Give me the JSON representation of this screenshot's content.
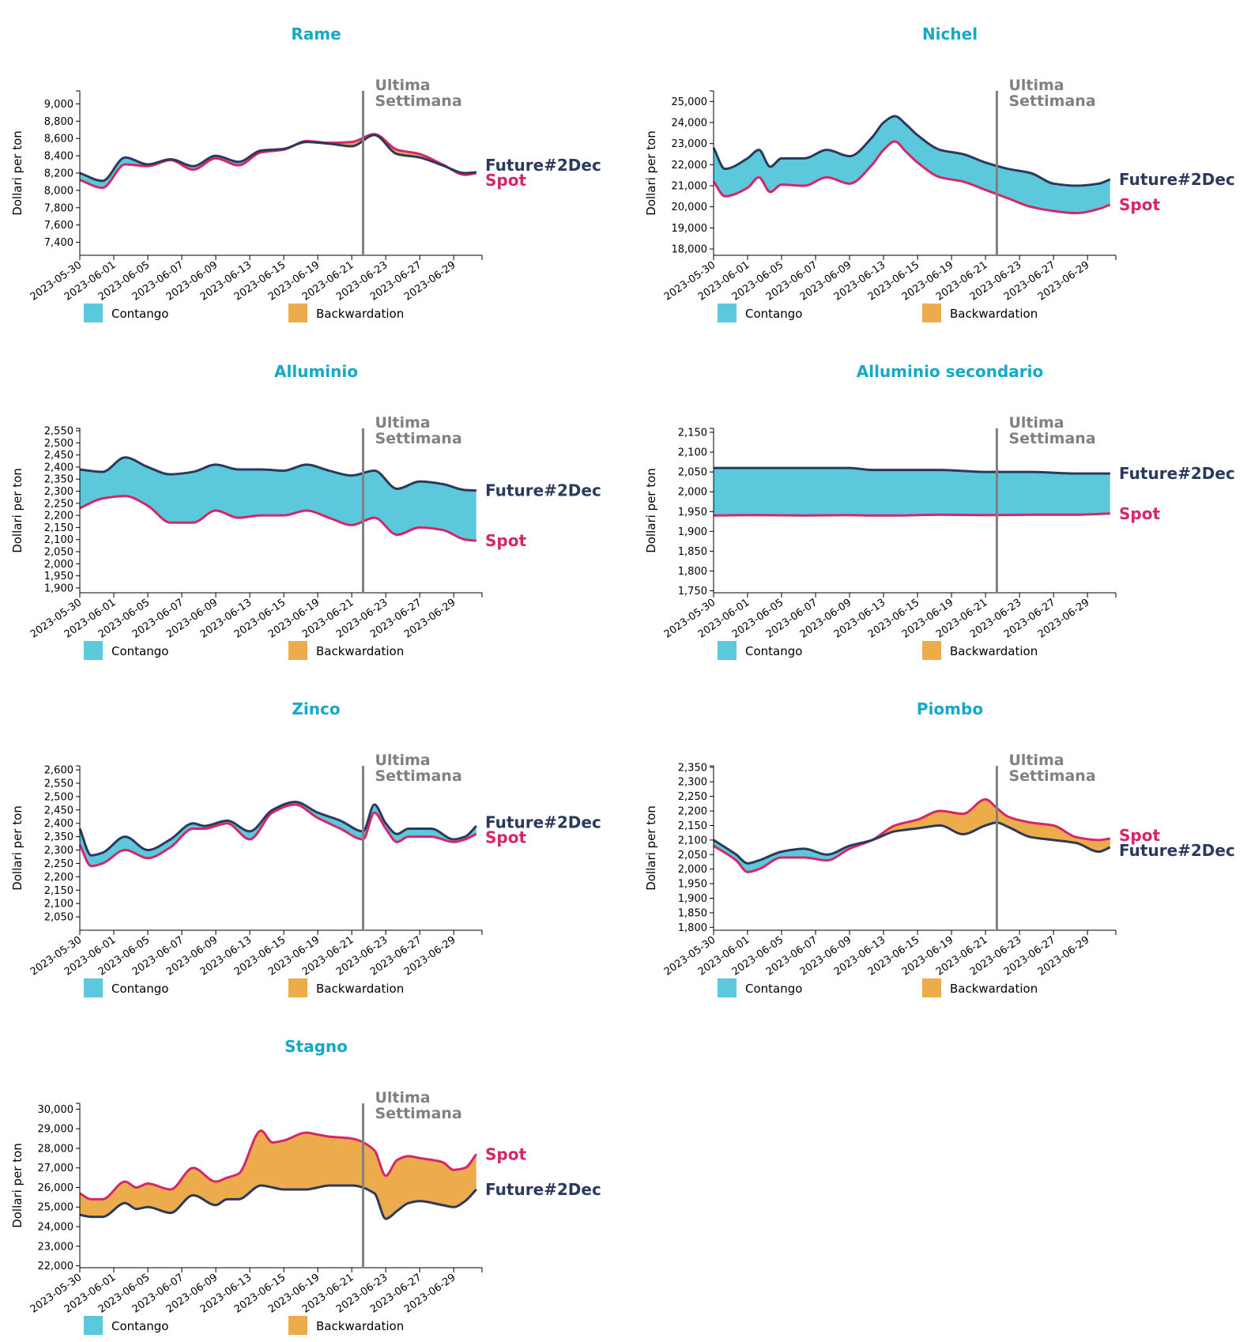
{
  "colors": {
    "title": "#14a9c9",
    "spot": "#d6266b",
    "future": "#2b3a5c",
    "contango": "#5bc8dc",
    "backwardation": "#ecac4c",
    "week_line": "#808080",
    "week_text": "#808080"
  },
  "legend": {
    "contango": "Contango",
    "backwardation": "Backwardation"
  },
  "ylabel": "Dollari per ton",
  "week_label_1": "Ultima",
  "week_label_2": "Settimana",
  "series_names": {
    "spot": "Spot",
    "future": "Future#2Dec"
  },
  "week_marker_day": 25,
  "x_ticks": [
    {
      "day": 0,
      "label": "2023-05-30"
    },
    {
      "day": 3,
      "label": "2023-06-01"
    },
    {
      "day": 6,
      "label": "2023-06-05"
    },
    {
      "day": 9,
      "label": "2023-06-07"
    },
    {
      "day": 12,
      "label": "2023-06-09"
    },
    {
      "day": 15,
      "label": "2023-06-13"
    },
    {
      "day": 18,
      "label": "2023-06-15"
    },
    {
      "day": 21,
      "label": "2023-06-19"
    },
    {
      "day": 24,
      "label": "2023-06-21"
    },
    {
      "day": 27,
      "label": "2023-06-23"
    },
    {
      "day": 30,
      "label": "2023-06-27"
    },
    {
      "day": 33,
      "label": "2023-06-29"
    }
  ],
  "chart_data": [
    {
      "type": "area",
      "title": "Rame",
      "ylim": [
        7250,
        9150
      ],
      "yticks": [
        7400,
        7600,
        7800,
        8000,
        8200,
        8400,
        8600,
        8800,
        9000
      ],
      "x": [
        0,
        2,
        4,
        6,
        8,
        10,
        12,
        14,
        16,
        18,
        20,
        22,
        24,
        26,
        28,
        30,
        32,
        34,
        35
      ],
      "spot": [
        8120,
        8030,
        8300,
        8280,
        8350,
        8240,
        8370,
        8290,
        8440,
        8470,
        8570,
        8550,
        8560,
        8650,
        8470,
        8420,
        8300,
        8180,
        8200
      ],
      "future": [
        8200,
        8110,
        8380,
        8300,
        8360,
        8280,
        8400,
        8330,
        8460,
        8480,
        8560,
        8540,
        8510,
        8640,
        8420,
        8380,
        8290,
        8200,
        8210
      ]
    },
    {
      "type": "area",
      "title": "Nichel",
      "ylim": [
        17700,
        25500
      ],
      "yticks": [
        18000,
        19000,
        20000,
        21000,
        22000,
        23000,
        24000,
        25000
      ],
      "x": [
        0,
        1,
        3,
        4,
        5,
        6,
        8,
        10,
        12,
        14,
        15,
        16,
        17,
        18,
        20,
        22,
        24,
        26,
        28,
        30,
        32,
        34,
        35
      ],
      "spot": [
        21200,
        20500,
        20900,
        21400,
        20700,
        21050,
        21000,
        21400,
        21100,
        22000,
        22700,
        23100,
        22600,
        22100,
        21400,
        21200,
        20800,
        20400,
        20000,
        19800,
        19700,
        19900,
        20100
      ],
      "future": [
        22800,
        21800,
        22300,
        22700,
        21900,
        22300,
        22300,
        22700,
        22400,
        23300,
        24000,
        24300,
        23900,
        23400,
        22700,
        22500,
        22100,
        21800,
        21600,
        21100,
        21000,
        21100,
        21300
      ]
    },
    {
      "type": "area",
      "title": "Alluminio",
      "ylim": [
        1880,
        2560
      ],
      "yticks": [
        1900,
        1950,
        2000,
        2050,
        2100,
        2150,
        2200,
        2250,
        2300,
        2350,
        2400,
        2450,
        2500,
        2550
      ],
      "x": [
        0,
        2,
        4,
        6,
        8,
        10,
        12,
        14,
        16,
        18,
        20,
        22,
        24,
        26,
        28,
        30,
        32,
        34,
        35
      ],
      "spot": [
        2230,
        2270,
        2280,
        2240,
        2170,
        2170,
        2220,
        2190,
        2200,
        2200,
        2220,
        2190,
        2160,
        2190,
        2120,
        2150,
        2140,
        2100,
        2095
      ],
      "future": [
        2390,
        2380,
        2440,
        2400,
        2370,
        2380,
        2410,
        2390,
        2390,
        2385,
        2410,
        2385,
        2365,
        2385,
        2310,
        2340,
        2330,
        2305,
        2303
      ]
    },
    {
      "type": "area",
      "title": "Alluminio secondario",
      "ylim": [
        1745,
        2160
      ],
      "yticks": [
        1750,
        1800,
        1850,
        1900,
        1950,
        2000,
        2050,
        2100,
        2150
      ],
      "x": [
        0,
        4,
        8,
        12,
        14,
        16,
        20,
        24,
        28,
        32,
        35
      ],
      "spot": [
        1940,
        1941,
        1940,
        1941,
        1940,
        1940,
        1942,
        1941,
        1942,
        1942,
        1945
      ],
      "future": [
        2060,
        2060,
        2060,
        2060,
        2055,
        2055,
        2055,
        2050,
        2050,
        2046,
        2046
      ]
    },
    {
      "type": "area",
      "title": "Zinco",
      "ylim": [
        2000,
        2615
      ],
      "yticks": [
        2050,
        2100,
        2150,
        2200,
        2250,
        2300,
        2350,
        2400,
        2450,
        2500,
        2550,
        2600
      ],
      "x": [
        0,
        1,
        2,
        4,
        6,
        8,
        10,
        11,
        13,
        15,
        17,
        19,
        21,
        23,
        25,
        26,
        27,
        28,
        29,
        31,
        33,
        34,
        35
      ],
      "spot": [
        2320,
        2240,
        2250,
        2300,
        2270,
        2310,
        2380,
        2380,
        2400,
        2340,
        2440,
        2470,
        2420,
        2380,
        2340,
        2440,
        2380,
        2330,
        2350,
        2350,
        2330,
        2340,
        2360
      ],
      "future": [
        2380,
        2280,
        2290,
        2350,
        2300,
        2340,
        2400,
        2390,
        2410,
        2370,
        2450,
        2480,
        2440,
        2410,
        2370,
        2470,
        2400,
        2360,
        2380,
        2380,
        2340,
        2350,
        2390
      ]
    },
    {
      "type": "area",
      "title": "Piombo",
      "ylim": [
        1790,
        2355
      ],
      "yticks": [
        1800,
        1850,
        1900,
        1950,
        2000,
        2050,
        2100,
        2150,
        2200,
        2250,
        2300,
        2350
      ],
      "x": [
        0,
        2,
        3,
        4,
        6,
        8,
        10,
        12,
        14,
        16,
        18,
        20,
        22,
        24,
        25,
        26,
        28,
        30,
        32,
        34,
        35
      ],
      "spot": [
        2080,
        2030,
        1990,
        2000,
        2040,
        2040,
        2030,
        2070,
        2100,
        2150,
        2170,
        2200,
        2190,
        2240,
        2210,
        2180,
        2160,
        2150,
        2110,
        2100,
        2105
      ],
      "future": [
        2100,
        2050,
        2020,
        2030,
        2060,
        2070,
        2050,
        2080,
        2100,
        2130,
        2140,
        2150,
        2120,
        2150,
        2160,
        2145,
        2110,
        2100,
        2090,
        2060,
        2075
      ]
    },
    {
      "type": "area",
      "title": "Stagno",
      "ylim": [
        21900,
        30300
      ],
      "yticks": [
        22000,
        23000,
        24000,
        25000,
        26000,
        27000,
        28000,
        29000,
        30000
      ],
      "x": [
        0,
        1,
        2,
        4,
        5,
        6,
        8,
        10,
        12,
        13,
        14,
        16,
        17,
        18,
        20,
        21,
        22,
        24,
        26,
        27,
        28,
        29,
        30,
        32,
        33,
        34,
        35
      ],
      "spot": [
        25700,
        25400,
        25400,
        26300,
        26000,
        26200,
        25900,
        27000,
        26300,
        26500,
        26700,
        28900,
        28300,
        28400,
        28800,
        28700,
        28600,
        28500,
        27900,
        26600,
        27400,
        27600,
        27500,
        27300,
        26900,
        27000,
        27700
      ],
      "future": [
        24600,
        24500,
        24500,
        25200,
        24900,
        25000,
        24700,
        25600,
        25100,
        25400,
        25400,
        26100,
        26000,
        25900,
        25900,
        26000,
        26100,
        26100,
        25700,
        24400,
        24800,
        25200,
        25300,
        25100,
        25000,
        25300,
        25900
      ]
    }
  ]
}
